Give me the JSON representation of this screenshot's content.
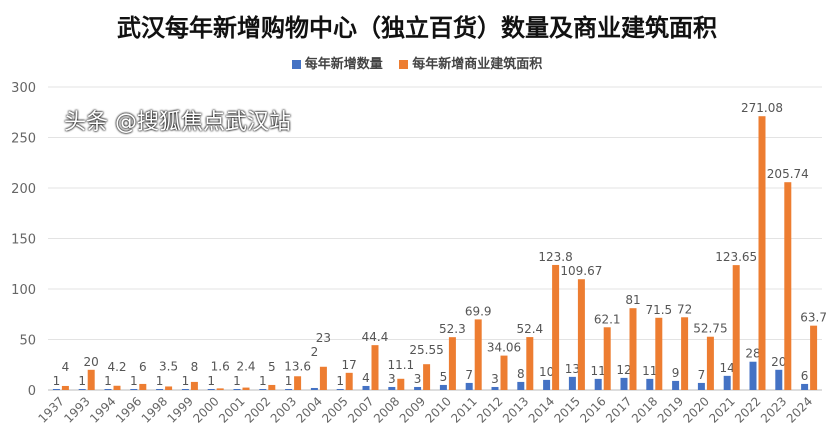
{
  "chart_data": {
    "type": "bar",
    "title": "武汉每年新增购物中心（独立百货）数量及商业建筑面积",
    "categories": [
      "1937",
      "1993",
      "1994",
      "1996",
      "1998",
      "1999",
      "2000",
      "2001",
      "2002",
      "2003",
      "2004",
      "2005",
      "2007",
      "2008",
      "2009",
      "2010",
      "2011",
      "2012",
      "2013",
      "2014",
      "2015",
      "2016",
      "2017",
      "2018",
      "2019",
      "2020",
      "2021",
      "2022",
      "2023",
      "2024"
    ],
    "series": [
      {
        "name": "每年新增数量",
        "color": "#4472C4",
        "values": [
          1,
          1,
          1,
          1,
          1,
          1,
          1,
          1,
          1,
          1,
          2,
          1,
          4,
          3,
          3,
          5,
          7,
          3,
          8,
          10,
          13,
          11,
          12,
          11,
          9,
          7,
          14,
          28,
          20,
          6
        ]
      },
      {
        "name": "每年新增商业建筑面积",
        "color": "#ED7D31",
        "values": [
          4,
          20,
          4.2,
          6,
          3.5,
          8,
          1.6,
          2.4,
          5,
          13.6,
          23,
          17,
          44.4,
          11.1,
          25.55,
          52.3,
          69.9,
          34.06,
          52.4,
          123.8,
          109.67,
          62.1,
          81,
          71.5,
          72,
          52.75,
          123.65,
          271.08,
          205.74,
          63.7
        ]
      }
    ],
    "ylim": [
      0,
      300
    ],
    "yticks": [
      0,
      50,
      100,
      150,
      200,
      250,
      300
    ],
    "grid": true,
    "legend": "top"
  },
  "watermark": "头条 @搜狐焦点武汉站"
}
